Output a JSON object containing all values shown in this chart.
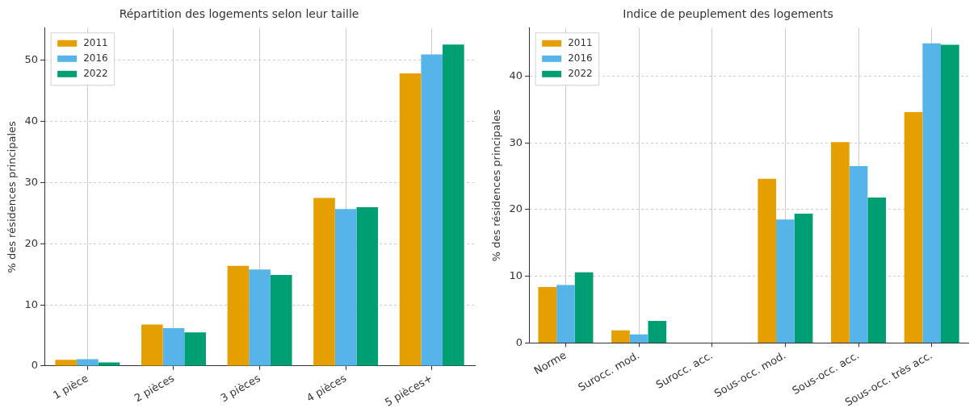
{
  "chart_data": [
    {
      "type": "bar",
      "title": "Répartition des logements selon leur taille",
      "ylabel": "% des résidences principales",
      "categories": [
        "1 pièce",
        "2 pièces",
        "3 pièces",
        "4 pièces",
        "5 pièces+"
      ],
      "series": [
        {
          "name": "2011",
          "color": "#e69f00",
          "values": [
            1.0,
            6.8,
            16.4,
            27.5,
            47.9
          ]
        },
        {
          "name": "2016",
          "color": "#56b4e9",
          "values": [
            1.1,
            6.2,
            15.8,
            25.7,
            51.0
          ]
        },
        {
          "name": "2022",
          "color": "#009e73",
          "values": [
            0.6,
            5.5,
            14.9,
            26.0,
            52.6
          ]
        }
      ],
      "ylim": [
        0,
        55.3
      ],
      "yticks": [
        0,
        10,
        20,
        30,
        40,
        50
      ],
      "grid": true,
      "legend": "top left"
    },
    {
      "type": "bar",
      "title": "Indice de peuplement des logements",
      "ylabel": "% des résidences principales",
      "categories": [
        "Norme",
        "Surocc. mod.",
        "Surocc. acc.",
        "Sous-occ. mod.",
        "Sous-occ. acc.",
        "Sous-occ. très acc."
      ],
      "series": [
        {
          "name": "2011",
          "color": "#e69f00",
          "values": [
            8.4,
            1.9,
            0,
            24.6,
            30.1,
            34.6
          ]
        },
        {
          "name": "2016",
          "color": "#56b4e9",
          "values": [
            8.7,
            1.3,
            0,
            18.5,
            26.5,
            44.9
          ]
        },
        {
          "name": "2022",
          "color": "#009e73",
          "values": [
            10.6,
            3.3,
            0,
            19.4,
            21.8,
            44.7
          ]
        }
      ],
      "ylim": [
        0,
        47.2
      ],
      "yticks": [
        0,
        10,
        20,
        30,
        40
      ],
      "grid": true,
      "legend": "top left"
    }
  ]
}
